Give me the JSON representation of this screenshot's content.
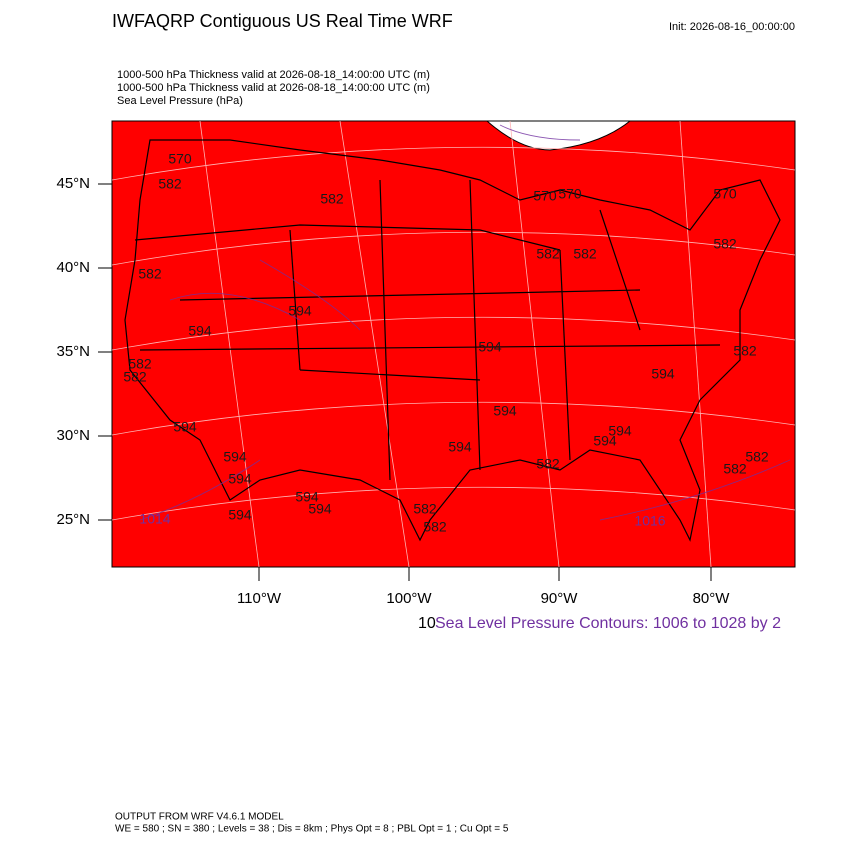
{
  "header": {
    "title": "IWFAQRP Contiguous US Real Time WRF",
    "init": "Init: 2026-08-16_00:00:00",
    "fields": [
      "1000-500 hPa Thickness valid at 2026-08-18_14:00:00 UTC   (m)",
      "1000-500 hPa Thickness valid at 2026-08-18_14:00:00 UTC   (m)",
      "Sea Level Pressure   (hPa)"
    ]
  },
  "map": {
    "lat_labels": [
      "45°N",
      "40°N",
      "35°N",
      "30°N",
      "25°N"
    ],
    "lon_labels": [
      "110°W",
      "100°W",
      "90°W",
      "80°W"
    ],
    "contour_labels": [
      "570",
      "582",
      "582",
      "570",
      "570",
      "570",
      "582",
      "582",
      "582",
      "582",
      "594",
      "582",
      "582",
      "594",
      "582",
      "594",
      "594",
      "594",
      "594",
      "594",
      "594",
      "594",
      "594",
      "594",
      "582",
      "582",
      "594",
      "594",
      "594",
      "582",
      "582",
      "582",
      "1014",
      "1016"
    ]
  },
  "legend": {
    "prefix": "10",
    "text": "Sea Level Pressure Contours: 1006 to 1028 by 2"
  },
  "footer": {
    "line1": "OUTPUT FROM WRF V4.6.1 MODEL",
    "line2": "WE = 580 ; SN = 380 ; Levels = 38 ; Dis = 8km ; Phys Opt = 8 ; PBL Opt = 1 ; Cu Opt = 5"
  }
}
